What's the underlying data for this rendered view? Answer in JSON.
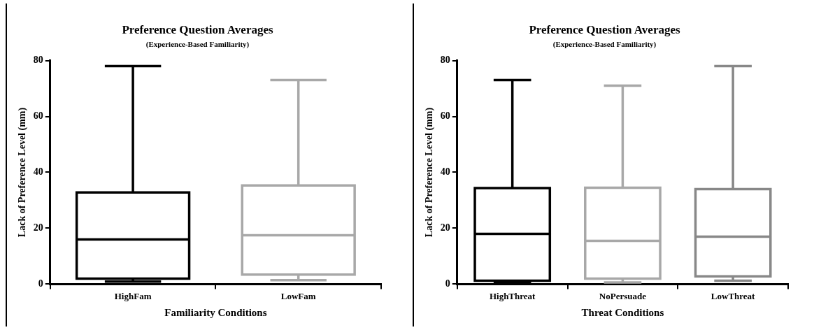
{
  "chart_data": [
    {
      "type": "box",
      "title": "Preference Question Averages",
      "subtitle": "(Experience-Based Familiarity)",
      "xlabel": "Familiarity Conditions",
      "ylabel": "Lack of Preference Level (mm)",
      "categories": [
        "HighFam",
        "LowFam"
      ],
      "colors": [
        "#000000",
        "#a8a8a8"
      ],
      "boxes": [
        {
          "low": 0.9,
          "q1": 2,
          "median": 16,
          "q3": 32.8,
          "high": 78
        },
        {
          "low": 1.4,
          "q1": 3.4,
          "median": 17.5,
          "q3": 35.3,
          "high": 73
        }
      ],
      "ylim": [
        0,
        80
      ],
      "yticks": [
        0,
        20,
        40,
        60,
        80
      ]
    },
    {
      "type": "box",
      "title": "Preference Question Averages",
      "subtitle": "(Experience-Based Familiarity)",
      "xlabel": "Threat Conditions",
      "ylabel": "Lack of Preference Level (mm)",
      "categories": [
        "HighThreat",
        "NoPersuade",
        "LowThreat"
      ],
      "colors": [
        "#000000",
        "#a8a8a8",
        "#888888"
      ],
      "boxes": [
        {
          "low": 0.5,
          "q1": 1.2,
          "median": 18,
          "q3": 34.4,
          "high": 73
        },
        {
          "low": 0.6,
          "q1": 2,
          "median": 15.5,
          "q3": 34.5,
          "high": 71
        },
        {
          "low": 1.2,
          "q1": 2.8,
          "median": 17,
          "q3": 34,
          "high": 78
        }
      ],
      "ylim": [
        0,
        80
      ],
      "yticks": [
        0,
        20,
        40,
        60,
        80
      ]
    }
  ]
}
